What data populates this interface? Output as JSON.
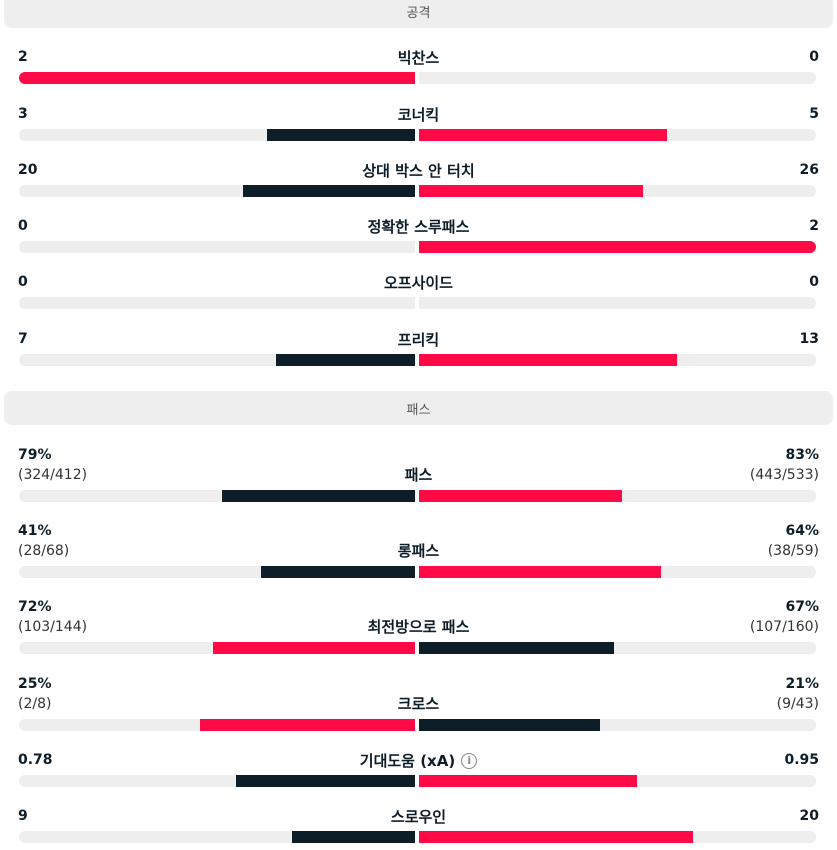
{
  "sections": [
    {
      "title": "공격",
      "stats": [
        {
          "label": "빅찬스",
          "left": "2",
          "right": "0",
          "left_share": 1.0,
          "right_share": 0.0,
          "left_color": "#ff0a46",
          "right_color": "#0e1e29"
        },
        {
          "label": "코너킥",
          "left": "3",
          "right": "5",
          "left_share": 0.375,
          "right_share": 0.625,
          "left_color": "#0e1e29",
          "right_color": "#ff0a46"
        },
        {
          "label": "상대 박스 안 터치",
          "left": "20",
          "right": "26",
          "left_share": 0.4348,
          "right_share": 0.5652,
          "left_color": "#0e1e29",
          "right_color": "#ff0a46"
        },
        {
          "label": "정확한 스루패스",
          "left": "0",
          "right": "2",
          "left_share": 0.0,
          "right_share": 1.0,
          "left_color": "#0e1e29",
          "right_color": "#ff0a46"
        },
        {
          "label": "오프사이드",
          "left": "0",
          "right": "0",
          "left_share": 0.0,
          "right_share": 0.0,
          "left_color": "#0e1e29",
          "right_color": "#ff0a46"
        },
        {
          "label": "프리킥",
          "left": "7",
          "right": "13",
          "left_share": 0.35,
          "right_share": 0.65,
          "left_color": "#0e1e29",
          "right_color": "#ff0a46"
        }
      ]
    },
    {
      "title": "패스",
      "stats": [
        {
          "label": "패스",
          "left": "79%",
          "left_sub": "(324/412)",
          "right": "83%",
          "right_sub": "(443/533)",
          "left_share": 0.4876,
          "right_share": 0.5124,
          "left_color": "#0e1e29",
          "right_color": "#ff0a46"
        },
        {
          "label": "롱패스",
          "left": "41%",
          "left_sub": "(28/68)",
          "right": "64%",
          "right_sub": "(38/59)",
          "left_share": 0.39,
          "right_share": 0.61,
          "left_color": "#0e1e29",
          "right_color": "#ff0a46"
        },
        {
          "label": "최전방으로 패스",
          "left": "72%",
          "left_sub": "(103/144)",
          "right": "67%",
          "right_sub": "(107/160)",
          "left_share": 0.5096,
          "right_share": 0.4904,
          "left_color": "#ff0a46",
          "right_color": "#0e1e29"
        },
        {
          "label": "크로스",
          "left": "25%",
          "left_sub": "(2/8)",
          "right": "21%",
          "right_sub": "(9/43)",
          "left_share": 0.5435,
          "right_share": 0.4565,
          "left_color": "#ff0a46",
          "right_color": "#0e1e29"
        },
        {
          "label": "기대도움 (xA)",
          "left": "0.78",
          "right": "0.95",
          "left_share": 0.4509,
          "right_share": 0.5491,
          "left_color": "#0e1e29",
          "right_color": "#ff0a46",
          "info_icon": "info-icon"
        },
        {
          "label": "스로우인",
          "left": "9",
          "right": "20",
          "left_share": 0.3103,
          "right_share": 0.6897,
          "left_color": "#0e1e29",
          "right_color": "#ff0a46"
        }
      ]
    }
  ]
}
